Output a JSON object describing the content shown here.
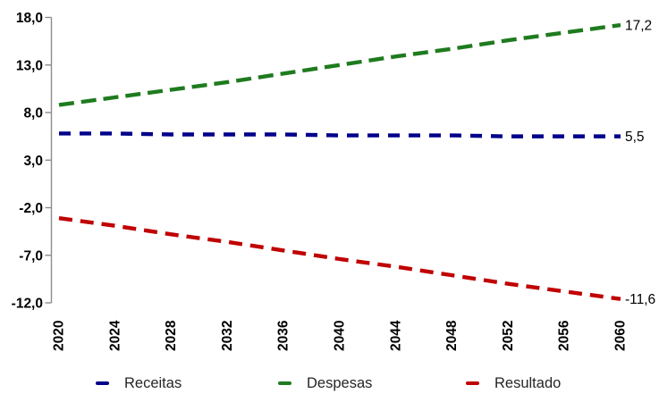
{
  "colors": {
    "background": "#FFFFFF",
    "axis": "#8C8C8C",
    "axis_text": "#000000",
    "end_label_text": "#000000",
    "legend_text": "#262626"
  },
  "chart_data": {
    "type": "line",
    "title": "",
    "xlabel": "",
    "ylabel": "",
    "grid": false,
    "x": [
      2020,
      2024,
      2028,
      2032,
      2036,
      2040,
      2044,
      2048,
      2052,
      2056,
      2060
    ],
    "x_tick_labels": [
      "2020",
      "2024",
      "2028",
      "2032",
      "2036",
      "2040",
      "2044",
      "2048",
      "2052",
      "2056",
      "2060"
    ],
    "y_ticks": [
      18,
      13,
      8,
      3,
      -2,
      -7,
      -12
    ],
    "y_tick_labels": [
      "18,0",
      "13,0",
      "8,0",
      "3,0",
      "-2,0",
      "-7,0",
      "-12,0"
    ],
    "ylim": [
      -12,
      18
    ],
    "series": [
      {
        "name": "Receitas",
        "color": "#00008B",
        "line_style": "dashed",
        "dash": [
          13,
          10
        ],
        "values": [
          5.8,
          5.8,
          5.7,
          5.7,
          5.7,
          5.6,
          5.6,
          5.6,
          5.5,
          5.5,
          5.5
        ],
        "end_label": "5,5"
      },
      {
        "name": "Despesas",
        "color": "#1E7B1E",
        "line_style": "dashed",
        "dash": [
          17,
          8
        ],
        "values": [
          8.8,
          9.6,
          10.4,
          11.2,
          12.1,
          13.0,
          13.9,
          14.7,
          15.6,
          16.4,
          17.2
        ],
        "end_label": "17,2"
      },
      {
        "name": "Resultado",
        "color": "#C00000",
        "line_style": "dashed",
        "dash": [
          15,
          9
        ],
        "values": [
          -3.1,
          -3.9,
          -4.8,
          -5.6,
          -6.5,
          -7.4,
          -8.2,
          -9.1,
          -10.0,
          -10.8,
          -11.6
        ],
        "end_label": "-11,6"
      }
    ],
    "legend": {
      "position": "bottom",
      "items": [
        "Receitas",
        "Despesas",
        "Resultado"
      ]
    }
  }
}
